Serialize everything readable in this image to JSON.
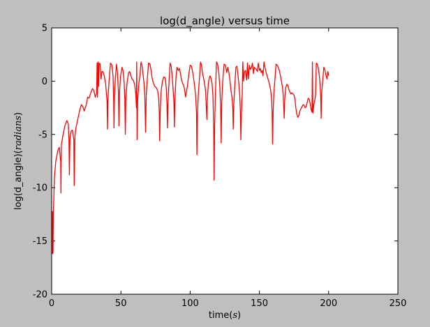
{
  "chart_data": {
    "type": "line",
    "title": "log(d_angle) versus time",
    "xlabel": "time(s)",
    "ylabel": "log(d_angle)(radians)",
    "xlim": [
      0,
      250
    ],
    "ylim": [
      -20,
      5
    ],
    "xticks": [
      0,
      50,
      100,
      150,
      200,
      250
    ],
    "yticks": [
      5,
      0,
      -5,
      -10,
      -15,
      -20
    ],
    "grid": false,
    "line_color": "#ff0000",
    "background": "#bfbfbf",
    "plot_background": "#ffffff",
    "series": [
      {
        "values": [
          [
            0.5,
            -12.2
          ],
          [
            0.6,
            -16.2
          ],
          [
            1.0,
            -16.1
          ],
          [
            1.2,
            -12.5
          ],
          [
            2.0,
            -9.0
          ],
          [
            3.0,
            -7.5
          ],
          [
            4.5,
            -6.5
          ],
          [
            5.5,
            -6.2
          ],
          [
            6.5,
            -7.5
          ],
          [
            6.7,
            -10.5
          ],
          [
            7.0,
            -6.0
          ],
          [
            8.0,
            -5.2
          ],
          [
            9.5,
            -4.2
          ],
          [
            11.0,
            -3.7
          ],
          [
            12.0,
            -4.0
          ],
          [
            12.5,
            -5.5
          ],
          [
            12.8,
            -8.8
          ],
          [
            13.2,
            -5.4
          ],
          [
            14.0,
            -4.7
          ],
          [
            15.0,
            -4.6
          ],
          [
            16.0,
            -5.5
          ],
          [
            16.3,
            -9.8
          ],
          [
            16.8,
            -5.2
          ],
          [
            17.5,
            -4.4
          ],
          [
            19.0,
            -3.5
          ],
          [
            20.5,
            -2.6
          ],
          [
            21.5,
            -2.2
          ],
          [
            22.5,
            -2.4
          ],
          [
            23.5,
            -2.8
          ],
          [
            25.0,
            -2.2
          ],
          [
            26.0,
            -1.5
          ],
          [
            27.0,
            -1.6
          ],
          [
            28.5,
            -1.0
          ],
          [
            29.5,
            -0.7
          ],
          [
            30.5,
            -0.9
          ],
          [
            31.5,
            -1.5
          ],
          [
            32.5,
            -1.1
          ],
          [
            32.8,
            1.7
          ],
          [
            33.1,
            -1.5
          ],
          [
            33.5,
            1.8
          ],
          [
            34.0,
            -0.5
          ],
          [
            34.3,
            1.7
          ],
          [
            35.0,
            1.6
          ],
          [
            35.7,
            0.2
          ],
          [
            36.3,
            0.9
          ],
          [
            37.0,
            0.9
          ],
          [
            38.0,
            0.5
          ],
          [
            39.0,
            -0.3
          ],
          [
            40.0,
            -1.9
          ],
          [
            40.3,
            -4.5
          ],
          [
            40.6,
            -1.8
          ],
          [
            41.5,
            0.1
          ],
          [
            42.5,
            1.7
          ],
          [
            43.5,
            1.5
          ],
          [
            44.3,
            0.5
          ],
          [
            44.8,
            -2.0
          ],
          [
            45.0,
            -4.4
          ],
          [
            45.3,
            -1.5
          ],
          [
            46.0,
            0.2
          ],
          [
            46.8,
            1.6
          ],
          [
            47.5,
            0.8
          ],
          [
            48.2,
            -1.0
          ],
          [
            48.6,
            -4.2
          ],
          [
            49.0,
            -1.0
          ],
          [
            49.8,
            0.5
          ],
          [
            50.8,
            1.3
          ],
          [
            51.5,
            1.0
          ],
          [
            52.3,
            0.0
          ],
          [
            52.8,
            -1.6
          ],
          [
            53.2,
            -5.0
          ],
          [
            53.6,
            -1.5
          ],
          [
            54.5,
            -0.1
          ],
          [
            55.5,
            0.8
          ],
          [
            56.3,
            0.9
          ],
          [
            57.0,
            0.6
          ],
          [
            58.0,
            0.2
          ],
          [
            59.0,
            0.1
          ],
          [
            60.0,
            -0.4
          ],
          [
            60.8,
            -1.3
          ],
          [
            61.2,
            -2.5
          ],
          [
            61.4,
            1.8
          ],
          [
            61.7,
            -5.5
          ],
          [
            62.1,
            -1.8
          ],
          [
            63.0,
            -0.2
          ],
          [
            63.8,
            0.6
          ],
          [
            64.5,
            1.8
          ],
          [
            65.2,
            1.5
          ],
          [
            66.0,
            0.6
          ],
          [
            66.7,
            -0.2
          ],
          [
            67.3,
            -1.5
          ],
          [
            67.8,
            -4.8
          ],
          [
            68.3,
            -1.3
          ],
          [
            69.0,
            0.1
          ],
          [
            70.0,
            1.7
          ],
          [
            71.0,
            1.6
          ],
          [
            71.8,
            1.0
          ],
          [
            72.5,
            0.3
          ],
          [
            73.5,
            -0.2
          ],
          [
            74.5,
            -0.5
          ],
          [
            75.5,
            -0.6
          ],
          [
            76.5,
            -0.9
          ],
          [
            77.3,
            -1.6
          ],
          [
            77.7,
            -3.0
          ],
          [
            78.0,
            -5.6
          ],
          [
            78.4,
            -2.8
          ],
          [
            79.0,
            -1.0
          ],
          [
            80.0,
            0.0
          ],
          [
            81.0,
            0.4
          ],
          [
            82.0,
            0.3
          ],
          [
            82.8,
            -0.7
          ],
          [
            83.3,
            -2.3
          ],
          [
            83.6,
            -4.4
          ],
          [
            84.0,
            -2.0
          ],
          [
            84.8,
            0.0
          ],
          [
            85.5,
            1.7
          ],
          [
            86.3,
            1.4
          ],
          [
            87.0,
            0.5
          ],
          [
            87.7,
            -0.8
          ],
          [
            88.3,
            -2.0
          ],
          [
            88.6,
            -4.3
          ],
          [
            89.0,
            -1.8
          ],
          [
            89.7,
            0.2
          ],
          [
            90.5,
            1.3
          ],
          [
            91.5,
            1.0
          ],
          [
            92.3,
            1.2
          ],
          [
            93.0,
            0.7
          ],
          [
            93.8,
            0.1
          ],
          [
            94.5,
            -0.2
          ],
          [
            95.3,
            -0.4
          ],
          [
            96.0,
            -0.8
          ],
          [
            96.7,
            -1.5
          ],
          [
            97.2,
            -1.1
          ],
          [
            98.0,
            -0.5
          ],
          [
            99.0,
            0.6
          ],
          [
            100.0,
            1.5
          ],
          [
            101.0,
            1.4
          ],
          [
            102.0,
            0.7
          ],
          [
            103.0,
            -0.2
          ],
          [
            104.0,
            -1.4
          ],
          [
            104.6,
            -3.0
          ],
          [
            104.9,
            -6.9
          ],
          [
            105.3,
            -3.0
          ],
          [
            106.0,
            -1.0
          ],
          [
            106.8,
            0.4
          ],
          [
            107.5,
            1.8
          ],
          [
            108.2,
            1.5
          ],
          [
            109.0,
            0.7
          ],
          [
            109.8,
            0.2
          ],
          [
            110.5,
            -0.3
          ],
          [
            111.2,
            -1.0
          ],
          [
            111.7,
            -2.5
          ],
          [
            112.1,
            -3.6
          ],
          [
            112.5,
            -1.5
          ],
          [
            113.3,
            0.0
          ],
          [
            114.3,
            0.5
          ],
          [
            115.0,
            0.3
          ],
          [
            115.8,
            -0.2
          ],
          [
            116.5,
            -1.5
          ],
          [
            117.0,
            -4.5
          ],
          [
            117.3,
            -9.3
          ],
          [
            117.7,
            -4.0
          ],
          [
            118.3,
            -1.0
          ],
          [
            119.0,
            1.8
          ],
          [
            119.8,
            1.6
          ],
          [
            120.7,
            0.8
          ],
          [
            121.4,
            -0.5
          ],
          [
            122.0,
            -2.3
          ],
          [
            122.4,
            -5.8
          ],
          [
            122.8,
            -2.0
          ],
          [
            123.5,
            0.0
          ],
          [
            124.5,
            1.6
          ],
          [
            125.5,
            1.5
          ],
          [
            126.4,
            0.8
          ],
          [
            127.2,
            1.3
          ],
          [
            128.0,
            0.8
          ],
          [
            128.8,
            0.0
          ],
          [
            129.5,
            -0.9
          ],
          [
            130.2,
            -1.5
          ],
          [
            130.8,
            -2.5
          ],
          [
            131.1,
            -4.5
          ],
          [
            131.5,
            -2.2
          ],
          [
            132.3,
            -0.3
          ],
          [
            133.0,
            1.3
          ],
          [
            133.8,
            1.4
          ],
          [
            134.5,
            0.6
          ],
          [
            135.2,
            -0.3
          ],
          [
            135.8,
            -1.3
          ],
          [
            136.3,
            -3.0
          ],
          [
            136.6,
            -5.5
          ],
          [
            137.0,
            -3.0
          ],
          [
            137.6,
            -1.2
          ],
          [
            138.0,
            1.8
          ],
          [
            138.6,
            0.0
          ],
          [
            139.3,
            0.9
          ],
          [
            140.0,
            1.0
          ],
          [
            140.8,
            0.1
          ],
          [
            141.4,
            1.7
          ],
          [
            142.0,
            0.2
          ],
          [
            142.8,
            1.5
          ],
          [
            143.5,
            1.1
          ],
          [
            144.3,
            1.3
          ],
          [
            145.0,
            1.7
          ],
          [
            145.7,
            0.7
          ],
          [
            146.3,
            1.3
          ],
          [
            147.0,
            1.2
          ],
          [
            147.8,
            1.1
          ],
          [
            148.5,
            0.9
          ],
          [
            149.2,
            1.7
          ],
          [
            150.0,
            1.0
          ],
          [
            150.7,
            1.2
          ],
          [
            151.3,
            0.8
          ],
          [
            152.0,
            1.0
          ],
          [
            152.6,
            0.5
          ],
          [
            153.3,
            1.8
          ],
          [
            154.0,
            1.3
          ],
          [
            154.7,
            0.9
          ],
          [
            155.3,
            0.6
          ],
          [
            156.0,
            0.3
          ],
          [
            156.7,
            0.0
          ],
          [
            157.5,
            -0.4
          ],
          [
            158.2,
            -0.9
          ],
          [
            158.8,
            -1.7
          ],
          [
            159.2,
            -3.0
          ],
          [
            159.5,
            -5.9
          ],
          [
            159.9,
            -2.9
          ],
          [
            160.5,
            -1.0
          ],
          [
            161.3,
            0.3
          ],
          [
            162.0,
            1.6
          ],
          [
            162.8,
            1.5
          ],
          [
            163.6,
            1.3
          ],
          [
            164.4,
            1.0
          ],
          [
            165.2,
            0.5
          ],
          [
            165.9,
            0.0
          ],
          [
            166.6,
            -0.5
          ],
          [
            167.2,
            -1.3
          ],
          [
            167.6,
            -2.5
          ],
          [
            167.9,
            -3.5
          ],
          [
            168.3,
            -1.7
          ],
          [
            169.0,
            -0.6
          ],
          [
            169.8,
            -0.3
          ],
          [
            170.6,
            -0.4
          ],
          [
            171.3,
            -0.8
          ],
          [
            172.0,
            -1.0
          ],
          [
            172.8,
            -1.2
          ],
          [
            173.5,
            -1.1
          ],
          [
            174.3,
            -1.2
          ],
          [
            175.0,
            -1.3
          ],
          [
            175.7,
            -1.7
          ],
          [
            176.3,
            -2.5
          ],
          [
            177.0,
            -3.1
          ],
          [
            177.8,
            -3.4
          ],
          [
            178.5,
            -3.2
          ],
          [
            179.2,
            -2.8
          ],
          [
            180.0,
            -2.6
          ],
          [
            180.8,
            -2.4
          ],
          [
            181.6,
            -2.2
          ],
          [
            182.4,
            -2.3
          ],
          [
            183.1,
            -2.5
          ],
          [
            183.8,
            -2.4
          ],
          [
            184.5,
            -2.0
          ],
          [
            185.2,
            -1.6
          ],
          [
            186.0,
            -1.7
          ],
          [
            186.8,
            -2.2
          ],
          [
            187.4,
            -2.7
          ],
          [
            188.0,
            -2.9
          ],
          [
            188.3,
            1.8
          ],
          [
            188.6,
            -3.0
          ],
          [
            189.3,
            -2.2
          ],
          [
            190.0,
            -1.8
          ],
          [
            190.6,
            -1.3
          ],
          [
            191.1,
            1.7
          ],
          [
            191.8,
            1.6
          ],
          [
            192.5,
            1.2
          ],
          [
            193.2,
            0.6
          ],
          [
            193.8,
            -0.3
          ],
          [
            194.3,
            -1.5
          ],
          [
            194.6,
            -3.5
          ],
          [
            195.0,
            -1.0
          ],
          [
            195.7,
            0.0
          ],
          [
            196.5,
            1.3
          ],
          [
            197.2,
            1.1
          ],
          [
            198.0,
            0.6
          ],
          [
            198.8,
            0.2
          ],
          [
            199.4,
            0.9
          ],
          [
            200.0,
            0.5
          ]
        ]
      }
    ]
  }
}
